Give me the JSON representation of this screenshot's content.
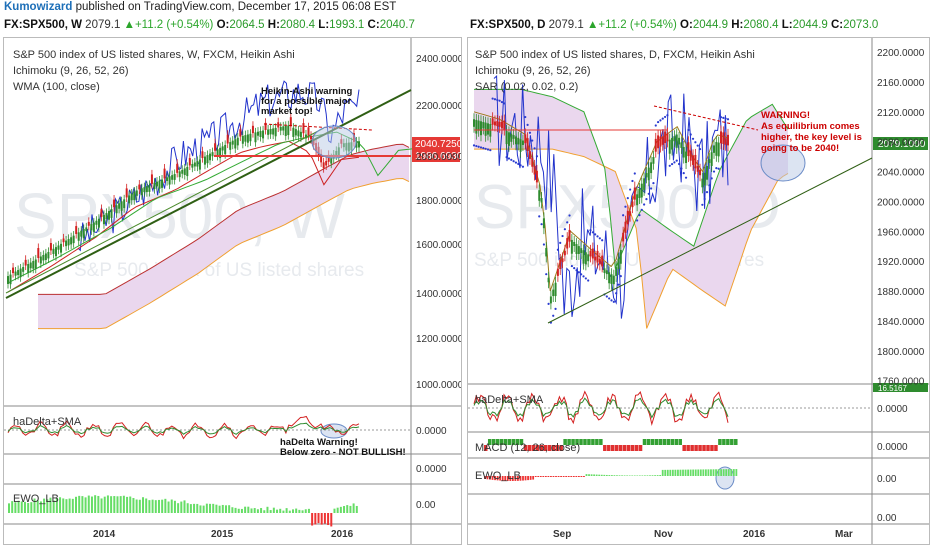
{
  "publish": {
    "user": "Kumowizard",
    "text": " published on TradingView.com, December 17, 2015 06:08 EST"
  },
  "left_header": {
    "symbol": "FX:SPX500, W",
    "last": "2079.1",
    "change": "+11.2 (+0.54%)",
    "o_label": "O:",
    "o": "2064.5",
    "h_label": "H:",
    "h": "2080.4",
    "l_label": "L:",
    "l": "1993.1",
    "c_label": "C:",
    "c": "2040.7"
  },
  "right_header": {
    "symbol": "FX:SPX500, D",
    "last": "2079.1",
    "change": "+11.2 (+0.54%)",
    "o_label": "O:",
    "o": "2044.9",
    "h_label": "H:",
    "h": "2080.4",
    "l_label": "L:",
    "l": "2044.9",
    "c_label": "C:",
    "c": "2073.0"
  },
  "colors": {
    "up": "#2e8b2e",
    "down": "#d32020",
    "price_red": "#e53935",
    "tenkan": "#2233cc",
    "kijun": "#cc2222",
    "senkou_a": "#33aa33",
    "senkou_b": "#f0a030",
    "cloud": "#ead7ee",
    "histo_green": "#66dd66",
    "histo_red": "#ee3333",
    "trendline": "#2f5f14",
    "annotation": "#cc0000",
    "ellipse": "#6b8cc7"
  },
  "left_chart": {
    "watermark": "SPX500, W",
    "watermark_sub": "S&P 500 index of US listed shares",
    "legend": [
      "S&P 500 index of US listed shares, W, FXCM, Heikin Ashi",
      "Ichimoku (9, 26, 52, 26)",
      "WMA (100, close)"
    ],
    "annotation_top": [
      "Heikin-Ashi warning",
      "for a possible major",
      "market top!"
    ],
    "annotation_bottom": [
      "haDelta Warning!",
      "Below zero - NOT BULLISH!"
    ],
    "sub1_label": "haDelta+SMA",
    "sub2_label": "EWO_LB",
    "price_tags": {
      "upper": "2040.7250",
      "lower": "1986.6930"
    },
    "y_ticks": [
      "2400.0000",
      "2200.0000",
      "2000.0000",
      "1800.0000",
      "1600.0000",
      "1400.0000",
      "1200.0000",
      "1000.0000"
    ],
    "sub_ticks": [
      "0.0000",
      "0.0000",
      "0.00"
    ],
    "x_ticks": [
      "2014",
      "2015",
      "2016"
    ]
  },
  "right_chart": {
    "watermark": "SPX500, D",
    "watermark_sub": "S&P 500 index of US listed shares",
    "legend": [
      "S&P 500 index of US listed shares, D, FXCM, Heikin Ashi",
      "Ichimoku (9, 26, 52, 26)",
      "SAR (0.02, 0.02, 0.2)"
    ],
    "annotation": [
      "WARNING!",
      "As equilibrium comes",
      "higher, the key level is",
      "going to be 2040!"
    ],
    "sub1_label": "haDelta+SMA",
    "sub2_label": "MACD (12, 26, close)",
    "sub3_label": "EWO_LB",
    "price_tag": "2079.1000",
    "sub1_tag": "16.5167",
    "y_ticks": [
      "2200.0000",
      "2160.0000",
      "2120.0000",
      "2080.0000",
      "2040.0000",
      "2000.0000",
      "1960.0000",
      "1920.0000",
      "1880.0000",
      "1840.0000",
      "1800.0000",
      "1760.0000"
    ],
    "sub_ticks": [
      "0.0000",
      "0.0000",
      "0.00",
      "0.00"
    ],
    "x_ticks": [
      "Sep",
      "Nov",
      "2016",
      "Mar"
    ]
  },
  "chart_data": [
    {
      "type": "candlestick",
      "title": "S&P 500 index of US listed shares, W, FXCM, Heikin Ashi",
      "indicators": [
        "Ichimoku (9, 26, 52, 26)",
        "WMA (100, close)",
        "haDelta+SMA",
        "EWO_LB"
      ],
      "ylim": [
        900,
        2480
      ],
      "x_ticks": [
        "2014",
        "2015",
        "2016"
      ],
      "series": [
        {
          "name": "close",
          "x": [
            "2013-03",
            "2013-09",
            "2014-01",
            "2014-06",
            "2014-12",
            "2015-05",
            "2015-08",
            "2015-10",
            "2015-12"
          ],
          "values": [
            1550,
            1690,
            1820,
            1950,
            2060,
            2110,
            1950,
            2040,
            2040.7
          ]
        }
      ]
    },
    {
      "type": "candlestick",
      "title": "S&P 500 index of US listed shares, D, FXCM, Heikin Ashi",
      "indicators": [
        "Ichimoku (9, 26, 52, 26)",
        "SAR (0.02, 0.02, 0.2)",
        "haDelta+SMA",
        "MACD (12, 26, close)",
        "EWO_LB"
      ],
      "ylim": [
        1740,
        2220
      ],
      "x_ticks": [
        "Sep",
        "Nov",
        "2016",
        "Mar"
      ],
      "series": [
        {
          "name": "close",
          "x": [
            "2015-07-20",
            "2015-08-10",
            "2015-08-24",
            "2015-09-15",
            "2015-10-01",
            "2015-10-20",
            "2015-11-03",
            "2015-11-16",
            "2015-12-04",
            "2015-12-16"
          ],
          "values": [
            2110,
            2090,
            1880,
            1960,
            1900,
            2040,
            2100,
            2030,
            2080,
            2079.1
          ]
        }
      ]
    }
  ]
}
